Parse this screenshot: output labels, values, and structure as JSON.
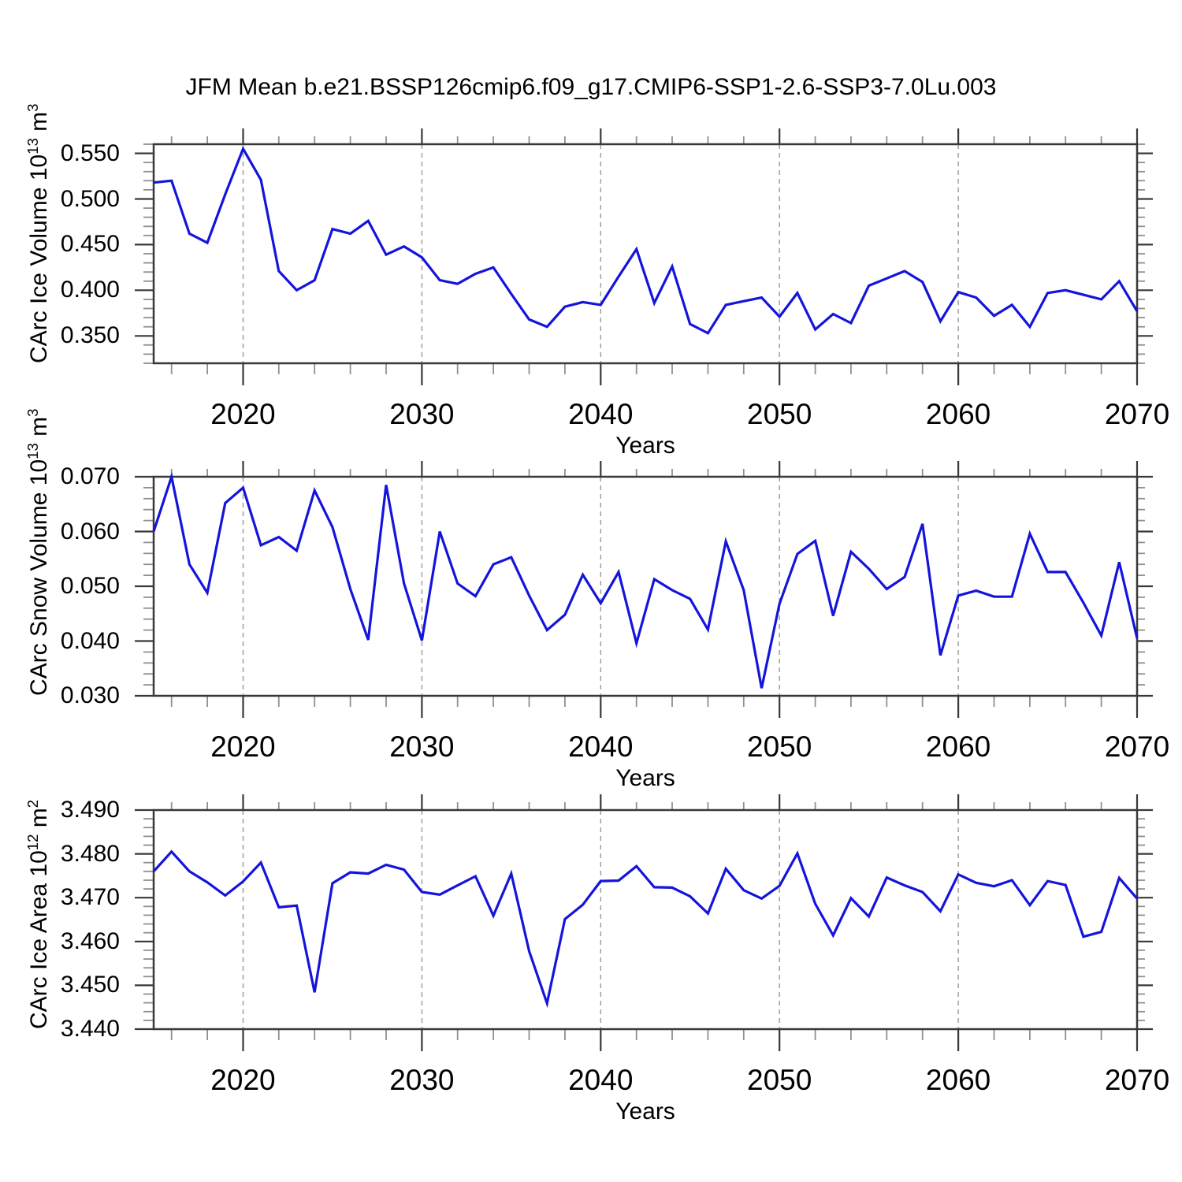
{
  "title": "JFM Mean b.e21.BSSP126cmip6.f09_g17.CMIP6-SSP1-2.6-SSP3-7.0Lu.003",
  "style": {
    "line_color": "#1414DC",
    "frame_color": "#383838",
    "major_tick_color": "#383838",
    "minor_tick_color": "#909090",
    "grid_color": "#A0A0A0",
    "background": "#FFFFFF"
  },
  "chart_data": [
    {
      "type": "line",
      "panel": "top",
      "ylabel": "CArc Ice Volume 10^13 m^3",
      "ylabel_parts": {
        "text": "CArc Ice Volume 10",
        "exp": "13",
        "unit": " m",
        "unit_exp": "3"
      },
      "xlabel": "Years",
      "xlim": [
        2015,
        2070
      ],
      "ylim": [
        0.32,
        0.56
      ],
      "grid": "vertical-dashed",
      "legend": "none",
      "gridlines_x": [
        2020,
        2030,
        2040,
        2050,
        2060
      ],
      "xticks": {
        "major": [
          2020,
          2030,
          2040,
          2050,
          2060,
          2070
        ],
        "labels": [
          "2020",
          "2030",
          "2040",
          "2050",
          "2060",
          "2070"
        ],
        "minor_step": 2
      },
      "yticks": {
        "major": [
          0.35,
          0.4,
          0.45,
          0.5,
          0.55
        ],
        "labels": [
          "0.350",
          "0.400",
          "0.450",
          "0.500",
          "0.550"
        ],
        "major_step": 0.05,
        "minor_step": 0.01
      },
      "x": [
        2015,
        2016,
        2017,
        2018,
        2019,
        2020,
        2021,
        2022,
        2023,
        2024,
        2025,
        2026,
        2027,
        2028,
        2029,
        2030,
        2031,
        2032,
        2033,
        2034,
        2035,
        2036,
        2037,
        2038,
        2039,
        2040,
        2041,
        2042,
        2043,
        2044,
        2045,
        2046,
        2047,
        2048,
        2049,
        2050,
        2051,
        2052,
        2053,
        2054,
        2055,
        2056,
        2057,
        2058,
        2059,
        2060,
        2061,
        2062,
        2063,
        2064,
        2065,
        2066,
        2067,
        2068,
        2069,
        2070
      ],
      "values": [
        0.518,
        0.52,
        0.462,
        0.452,
        0.505,
        0.555,
        0.521,
        0.421,
        0.4,
        0.411,
        0.467,
        0.462,
        0.476,
        0.439,
        0.448,
        0.436,
        0.411,
        0.407,
        0.418,
        0.425,
        0.396,
        0.368,
        0.36,
        0.382,
        0.387,
        0.384,
        0.415,
        0.445,
        0.386,
        0.426,
        0.363,
        0.353,
        0.384,
        0.388,
        0.392,
        0.371,
        0.397,
        0.357,
        0.374,
        0.364,
        0.405,
        0.413,
        0.421,
        0.409,
        0.366,
        0.398,
        0.392,
        0.372,
        0.384,
        0.36,
        0.397,
        0.4,
        0.395,
        0.39,
        0.41,
        0.377
      ]
    },
    {
      "type": "line",
      "panel": "middle",
      "ylabel": "CArc Snow Volume 10^13 m^3",
      "ylabel_parts": {
        "text": "CArc Snow Volume 10",
        "exp": "13",
        "unit": " m",
        "unit_exp": "3"
      },
      "xlabel": "Years",
      "xlim": [
        2015,
        2070
      ],
      "ylim": [
        0.03,
        0.07
      ],
      "grid": "vertical-dashed",
      "legend": "none",
      "gridlines_x": [
        2020,
        2030,
        2040,
        2050,
        2060
      ],
      "xticks": {
        "major": [
          2020,
          2030,
          2040,
          2050,
          2060,
          2070
        ],
        "labels": [
          "2020",
          "2030",
          "2040",
          "2050",
          "2060",
          "2070"
        ],
        "minor_step": 2
      },
      "yticks": {
        "major": [
          0.03,
          0.04,
          0.05,
          0.06,
          0.07
        ],
        "labels": [
          "0.030",
          "0.040",
          "0.050",
          "0.060",
          "0.070"
        ],
        "major_step": 0.01,
        "minor_step": 0.002
      },
      "x": [
        2015,
        2016,
        2017,
        2018,
        2019,
        2020,
        2021,
        2022,
        2023,
        2024,
        2025,
        2026,
        2027,
        2028,
        2029,
        2030,
        2031,
        2032,
        2033,
        2034,
        2035,
        2036,
        2037,
        2038,
        2039,
        2040,
        2041,
        2042,
        2043,
        2044,
        2045,
        2046,
        2047,
        2048,
        2049,
        2050,
        2051,
        2052,
        2053,
        2054,
        2055,
        2056,
        2057,
        2058,
        2059,
        2060,
        2061,
        2062,
        2063,
        2064,
        2065,
        2066,
        2067,
        2068,
        2069,
        2070
      ],
      "values": [
        0.06,
        0.07,
        0.054,
        0.0488,
        0.0652,
        0.068,
        0.0575,
        0.059,
        0.0565,
        0.0675,
        0.0608,
        0.0495,
        0.0402,
        0.0685,
        0.0505,
        0.0401,
        0.06,
        0.0505,
        0.0482,
        0.054,
        0.0553,
        0.0483,
        0.042,
        0.0448,
        0.0521,
        0.0469,
        0.0526,
        0.0396,
        0.0513,
        0.0493,
        0.0477,
        0.0421,
        0.0582,
        0.0493,
        0.0314,
        0.0468,
        0.0559,
        0.0583,
        0.0446,
        0.0563,
        0.0532,
        0.0495,
        0.0517,
        0.0614,
        0.0374,
        0.0483,
        0.0492,
        0.0481,
        0.0481,
        0.0596,
        0.0526,
        0.0526,
        0.047,
        0.041,
        0.0544,
        0.0405
      ]
    },
    {
      "type": "line",
      "panel": "bottom",
      "ylabel": "CArc Ice Area 10^12 m^2",
      "ylabel_parts": {
        "text": "CArc Ice Area 10",
        "exp": "12",
        "unit": " m",
        "unit_exp": "2"
      },
      "xlabel": "Years",
      "xlim": [
        2015,
        2070
      ],
      "ylim": [
        3.44,
        3.49
      ],
      "grid": "vertical-dashed",
      "legend": "none",
      "gridlines_x": [
        2020,
        2030,
        2040,
        2050,
        2060
      ],
      "xticks": {
        "major": [
          2020,
          2030,
          2040,
          2050,
          2060,
          2070
        ],
        "labels": [
          "2020",
          "2030",
          "2040",
          "2050",
          "2060",
          "2070"
        ],
        "minor_step": 2
      },
      "yticks": {
        "major": [
          3.44,
          3.45,
          3.46,
          3.47,
          3.48,
          3.49
        ],
        "labels": [
          "3.440",
          "3.450",
          "3.460",
          "3.470",
          "3.480",
          "3.490"
        ],
        "major_step": 0.01,
        "minor_step": 0.002
      },
      "x": [
        2015,
        2016,
        2017,
        2018,
        2019,
        2020,
        2021,
        2022,
        2023,
        2024,
        2025,
        2026,
        2027,
        2028,
        2029,
        2030,
        2031,
        2032,
        2033,
        2034,
        2035,
        2036,
        2037,
        2038,
        2039,
        2040,
        2041,
        2042,
        2043,
        2044,
        2045,
        2046,
        2047,
        2048,
        2049,
        2050,
        2051,
        2052,
        2053,
        2054,
        2055,
        2056,
        2057,
        2058,
        2059,
        2060,
        2061,
        2062,
        2063,
        2064,
        2065,
        2066,
        2067,
        2068,
        2069,
        2070
      ],
      "values": [
        3.476,
        3.4805,
        3.476,
        3.4735,
        3.4705,
        3.4737,
        3.478,
        3.4678,
        3.4682,
        3.4484,
        3.4733,
        3.4758,
        3.4755,
        3.4775,
        3.4764,
        3.4713,
        3.4707,
        3.4728,
        3.4749,
        3.4659,
        3.4755,
        3.4578,
        3.4459,
        3.4651,
        3.4684,
        3.4738,
        3.4739,
        3.4772,
        3.4724,
        3.4723,
        3.4703,
        3.4664,
        3.4766,
        3.4717,
        3.4698,
        3.4727,
        3.4801,
        3.4686,
        3.4614,
        3.4699,
        3.4657,
        3.4746,
        3.4728,
        3.4713,
        3.4669,
        3.4753,
        3.4734,
        3.4726,
        3.474,
        3.4683,
        3.4738,
        3.4729,
        3.4611,
        3.4622,
        3.4745,
        3.4698
      ]
    }
  ]
}
